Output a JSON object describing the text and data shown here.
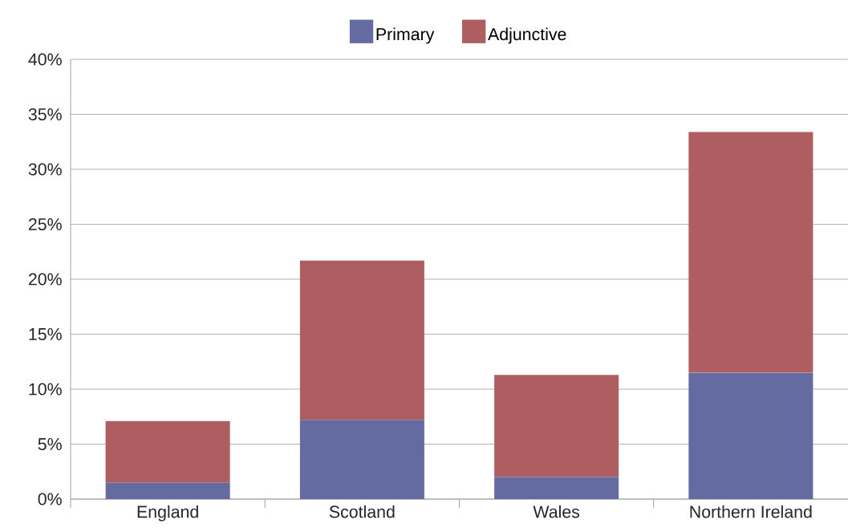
{
  "chart_data": {
    "type": "bar",
    "stacked": true,
    "categories": [
      "England",
      "Scotland",
      "Wales",
      "Northern Ireland"
    ],
    "series": [
      {
        "name": "Primary",
        "color": "#646ba0",
        "values": [
          1.5,
          7.2,
          2.0,
          11.5
        ]
      },
      {
        "name": "Adjunctive",
        "color": "#ae5d61",
        "values": [
          5.6,
          14.5,
          9.3,
          21.9
        ]
      }
    ],
    "ylim": [
      0,
      40
    ],
    "yticks": [
      {
        "value": 0,
        "label": "0%"
      },
      {
        "value": 5,
        "label": "5%"
      },
      {
        "value": 10,
        "label": "10%"
      },
      {
        "value": 15,
        "label": "15%"
      },
      {
        "value": 20,
        "label": "20%"
      },
      {
        "value": 25,
        "label": "25%"
      },
      {
        "value": 30,
        "label": "30%"
      },
      {
        "value": 35,
        "label": "35%"
      },
      {
        "value": 40,
        "label": "40%"
      }
    ],
    "grid": "y",
    "legend": "top"
  }
}
